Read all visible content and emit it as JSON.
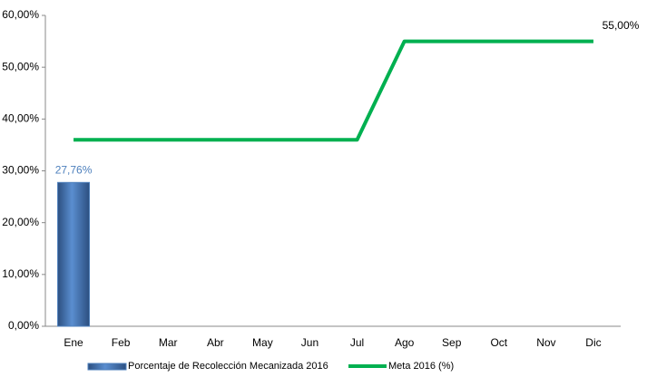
{
  "chart_data": {
    "type": "combo",
    "categories": [
      "Ene",
      "Feb",
      "Mar",
      "Abr",
      "May",
      "Jun",
      "Jul",
      "Ago",
      "Sep",
      "Oct",
      "Nov",
      "Dic"
    ],
    "series": [
      {
        "name": "Porcentaje de Recolección Mecanizada 2016",
        "type": "bar",
        "color": "#4f81bd",
        "values": [
          27.76,
          null,
          null,
          null,
          null,
          null,
          null,
          null,
          null,
          null,
          null,
          null
        ],
        "value_labels": [
          "27,76%",
          null,
          null,
          null,
          null,
          null,
          null,
          null,
          null,
          null,
          null,
          null
        ]
      },
      {
        "name": "Meta 2016 (%)",
        "type": "line",
        "color": "#00b050",
        "values": [
          36,
          36,
          36,
          36,
          36,
          36,
          36,
          55,
          55,
          55,
          55,
          55
        ],
        "value_labels": [
          null,
          null,
          null,
          null,
          null,
          null,
          null,
          null,
          null,
          null,
          null,
          "55,00%"
        ]
      }
    ],
    "ylim": [
      0,
      60
    ],
    "yticks": [
      {
        "value": 0,
        "label": "0,00%"
      },
      {
        "value": 10,
        "label": "10,00%"
      },
      {
        "value": 20,
        "label": "20,00%"
      },
      {
        "value": 30,
        "label": "30,00%"
      },
      {
        "value": 40,
        "label": "40,00%"
      },
      {
        "value": 50,
        "label": "50,00%"
      },
      {
        "value": 60,
        "label": "60,00%"
      }
    ],
    "grid": false,
    "legend": "bottom"
  }
}
